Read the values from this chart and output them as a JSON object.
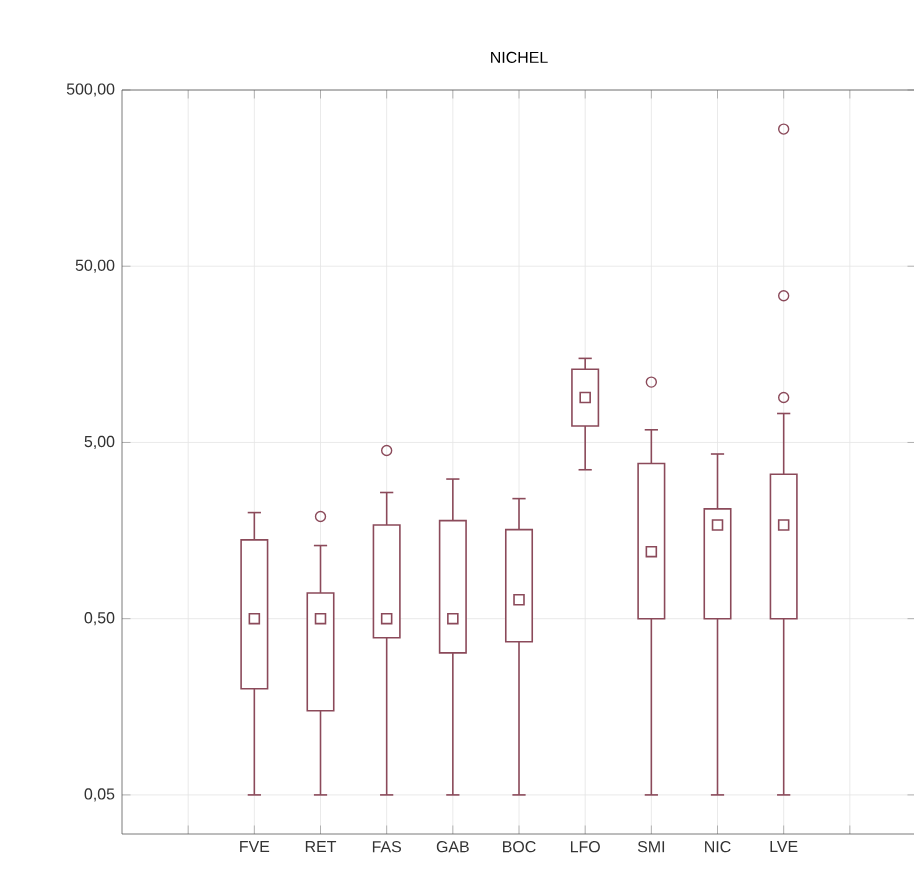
{
  "chart_data": {
    "type": "box",
    "title": "NICHEL",
    "categories": [
      "FVE",
      "RET",
      "FAS",
      "GAB",
      "BOC",
      "LFO",
      "SMI",
      "NIC",
      "LVE"
    ],
    "color": "#8b4a5a",
    "boxes": [
      {
        "low": 0.05,
        "q1": 0.2,
        "median": 0.5,
        "q3": 1.4,
        "high": 2.0
      },
      {
        "low": 0.05,
        "q1": 0.15,
        "median": 0.5,
        "q3": 0.7,
        "high": 1.3,
        "outliers": [
          1.9
        ]
      },
      {
        "low": 0.05,
        "q1": 0.39,
        "median": 0.5,
        "q3": 1.7,
        "high": 2.6,
        "outliers": [
          4.5
        ]
      },
      {
        "low": 0.05,
        "q1": 0.32,
        "median": 0.5,
        "q3": 1.8,
        "high": 3.1
      },
      {
        "low": 0.05,
        "q1": 0.37,
        "median": 0.64,
        "q3": 1.6,
        "high": 2.4
      },
      {
        "low": 3.5,
        "q1": 6.2,
        "median": 9,
        "q3": 13,
        "high": 15
      },
      {
        "low": 0.05,
        "q1": 0.5,
        "median": 1.2,
        "q3": 3.8,
        "high": 5.9,
        "outliers": [
          11
        ]
      },
      {
        "low": 0.05,
        "q1": 0.5,
        "median": 1.7,
        "q3": 2.1,
        "high": 4.3
      },
      {
        "low": 0.05,
        "q1": 0.5,
        "median": 1.7,
        "q3": 3.3,
        "high": 7.3,
        "outliers": [
          9,
          34,
          300
        ]
      }
    ],
    "log": true,
    "ylim": [
      0.03,
      500
    ],
    "yticks": [
      {
        "value": 0.05,
        "label": "0,05"
      },
      {
        "value": 0.5,
        "label": "0,50"
      },
      {
        "value": 5,
        "label": "5,00"
      },
      {
        "value": 50,
        "label": "50,00"
      },
      {
        "value": 500,
        "label": "500,00"
      }
    ],
    "grid": true
  }
}
